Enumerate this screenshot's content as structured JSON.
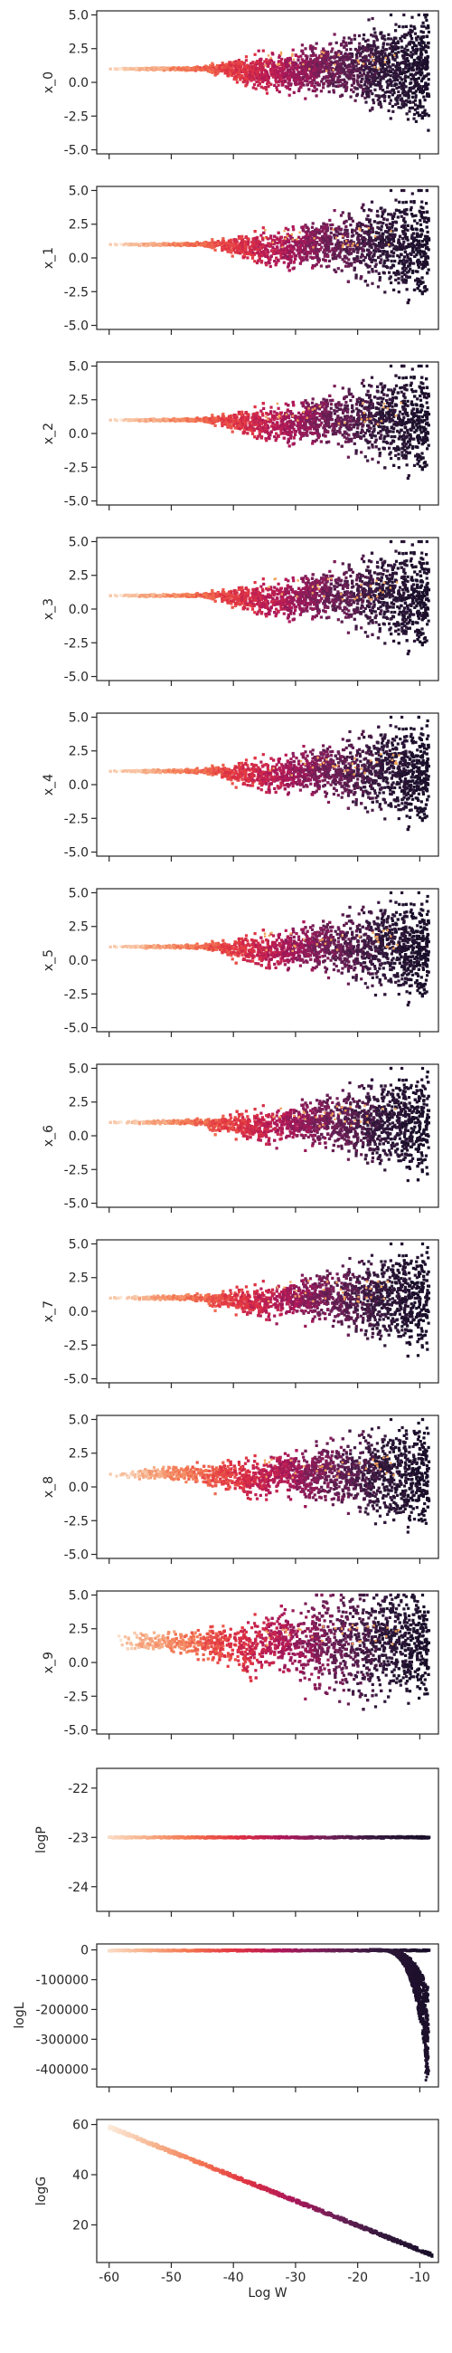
{
  "figure": {
    "shared_xlabel": "Log W",
    "colormap": [
      "#fcebdb",
      "#f6b48e",
      "#f37651",
      "#e13342",
      "#ad1759",
      "#701f57",
      "#35193e",
      "#1a0f2a"
    ],
    "outlier_color": "#f2a25a"
  },
  "chart_data": [
    {
      "type": "scatter",
      "ylabel": "x_0",
      "xlim": [
        -62,
        -7
      ],
      "ylim": [
        -5.3,
        5.3
      ],
      "yticks": [
        5.0,
        2.5,
        0.0,
        -2.5,
        -5.0
      ],
      "yticklabels": [
        "5.0",
        "2.5",
        "0.0",
        "-2.5",
        "-5.0"
      ],
      "xticks": [
        -60,
        -50,
        -40,
        -30,
        -20,
        -10
      ],
      "xticklabels": [
        "",
        "",
        "",
        "",
        "",
        ""
      ],
      "trend": "fan",
      "y_center": 1.0,
      "spread_at_x": [
        [
          -60,
          0.05
        ],
        [
          -45,
          0.15
        ],
        [
          -40,
          0.9
        ],
        [
          -30,
          1.6
        ],
        [
          -20,
          3.0
        ],
        [
          -10,
          5.0
        ]
      ],
      "dip_at": -41
    },
    {
      "type": "scatter",
      "ylabel": "x_1",
      "xlim": [
        -62,
        -7
      ],
      "ylim": [
        -5.3,
        5.3
      ],
      "yticks": [
        5.0,
        2.5,
        0.0,
        -2.5,
        -5.0
      ],
      "yticklabels": [
        "5.0",
        "2.5",
        "0.0",
        "-2.5",
        "-5.0"
      ],
      "xticks": [
        -60,
        -50,
        -40,
        -30,
        -20,
        -10
      ],
      "xticklabels": [
        "",
        "",
        "",
        "",
        "",
        ""
      ],
      "trend": "fan",
      "y_center": 1.0,
      "spread_at_x": [
        [
          -60,
          0.05
        ],
        [
          -45,
          0.15
        ],
        [
          -40,
          0.8
        ],
        [
          -30,
          1.5
        ],
        [
          -20,
          3.0
        ],
        [
          -10,
          5.0
        ]
      ],
      "dip_at": -42
    },
    {
      "type": "scatter",
      "ylabel": "x_2",
      "xlim": [
        -62,
        -7
      ],
      "ylim": [
        -5.3,
        5.3
      ],
      "yticks": [
        5.0,
        2.5,
        0.0,
        -2.5,
        -5.0
      ],
      "yticklabels": [
        "5.0",
        "2.5",
        "0.0",
        "-2.5",
        "-5.0"
      ],
      "xticks": [
        -60,
        -50,
        -40,
        -30,
        -20,
        -10
      ],
      "xticklabels": [
        "",
        "",
        "",
        "",
        "",
        ""
      ],
      "trend": "fan",
      "y_center": 1.0,
      "spread_at_x": [
        [
          -60,
          0.05
        ],
        [
          -45,
          0.15
        ],
        [
          -40,
          0.8
        ],
        [
          -30,
          1.5
        ],
        [
          -20,
          3.0
        ],
        [
          -10,
          5.0
        ]
      ],
      "dip_at": -42
    },
    {
      "type": "scatter",
      "ylabel": "x_3",
      "xlim": [
        -62,
        -7
      ],
      "ylim": [
        -5.3,
        5.3
      ],
      "yticks": [
        5.0,
        2.5,
        0.0,
        -2.5,
        -5.0
      ],
      "yticklabels": [
        "5.0",
        "2.5",
        "0.0",
        "-2.5",
        "-5.0"
      ],
      "xticks": [
        -60,
        -50,
        -40,
        -30,
        -20,
        -10
      ],
      "xticklabels": [
        "",
        "",
        "",
        "",
        "",
        ""
      ],
      "trend": "fan",
      "y_center": 1.0,
      "spread_at_x": [
        [
          -60,
          0.05
        ],
        [
          -45,
          0.15
        ],
        [
          -40,
          0.8
        ],
        [
          -30,
          1.5
        ],
        [
          -20,
          3.0
        ],
        [
          -10,
          5.0
        ]
      ],
      "dip_at": -42
    },
    {
      "type": "scatter",
      "ylabel": "x_4",
      "xlim": [
        -62,
        -7
      ],
      "ylim": [
        -5.3,
        5.3
      ],
      "yticks": [
        5.0,
        2.5,
        0.0,
        -2.5,
        -5.0
      ],
      "yticklabels": [
        "5.0",
        "2.5",
        "0.0",
        "-2.5",
        "-5.0"
      ],
      "xticks": [
        -60,
        -50,
        -40,
        -30,
        -20,
        -10
      ],
      "xticklabels": [
        "",
        "",
        "",
        "",
        "",
        ""
      ],
      "trend": "fan",
      "y_center": 1.0,
      "spread_at_x": [
        [
          -60,
          0.05
        ],
        [
          -45,
          0.2
        ],
        [
          -40,
          0.8
        ],
        [
          -30,
          1.5
        ],
        [
          -20,
          3.0
        ],
        [
          -10,
          5.0
        ]
      ],
      "dip_at": -43
    },
    {
      "type": "scatter",
      "ylabel": "x_5",
      "xlim": [
        -62,
        -7
      ],
      "ylim": [
        -5.3,
        5.3
      ],
      "yticks": [
        5.0,
        2.5,
        0.0,
        -2.5,
        -5.0
      ],
      "yticklabels": [
        "5.0",
        "2.5",
        "0.0",
        "-2.5",
        "-5.0"
      ],
      "xticks": [
        -60,
        -50,
        -40,
        -30,
        -20,
        -10
      ],
      "xticklabels": [
        "",
        "",
        "",
        "",
        "",
        ""
      ],
      "trend": "fan",
      "y_center": 1.0,
      "spread_at_x": [
        [
          -60,
          0.05
        ],
        [
          -45,
          0.2
        ],
        [
          -40,
          0.8
        ],
        [
          -30,
          1.5
        ],
        [
          -20,
          3.0
        ],
        [
          -10,
          5.0
        ]
      ],
      "dip_at": -43
    },
    {
      "type": "scatter",
      "ylabel": "x_6",
      "xlim": [
        -62,
        -7
      ],
      "ylim": [
        -5.3,
        5.3
      ],
      "yticks": [
        5.0,
        2.5,
        0.0,
        -2.5,
        -5.0
      ],
      "yticklabels": [
        "5.0",
        "2.5",
        "0.0",
        "-2.5",
        "-5.0"
      ],
      "xticks": [
        -60,
        -50,
        -40,
        -30,
        -20,
        -10
      ],
      "xticklabels": [
        "",
        "",
        "",
        "",
        "",
        ""
      ],
      "trend": "fan",
      "y_center": 1.0,
      "spread_at_x": [
        [
          -60,
          0.05
        ],
        [
          -45,
          0.25
        ],
        [
          -40,
          0.8
        ],
        [
          -30,
          1.5
        ],
        [
          -20,
          3.0
        ],
        [
          -10,
          5.0
        ]
      ],
      "dip_at": -44
    },
    {
      "type": "scatter",
      "ylabel": "x_7",
      "xlim": [
        -62,
        -7
      ],
      "ylim": [
        -5.3,
        5.3
      ],
      "yticks": [
        5.0,
        2.5,
        0.0,
        -2.5,
        -5.0
      ],
      "yticklabels": [
        "5.0",
        "2.5",
        "0.0",
        "-2.5",
        "-5.0"
      ],
      "xticks": [
        -60,
        -50,
        -40,
        -30,
        -20,
        -10
      ],
      "xticklabels": [
        "",
        "",
        "",
        "",
        "",
        ""
      ],
      "trend": "fan",
      "y_center": 1.0,
      "spread_at_x": [
        [
          -60,
          0.05
        ],
        [
          -45,
          0.3
        ],
        [
          -40,
          0.8
        ],
        [
          -30,
          1.5
        ],
        [
          -20,
          3.0
        ],
        [
          -10,
          5.0
        ]
      ],
      "dip_at": -44
    },
    {
      "type": "scatter",
      "ylabel": "x_8",
      "xlim": [
        -62,
        -7
      ],
      "ylim": [
        -5.3,
        5.3
      ],
      "yticks": [
        5.0,
        2.5,
        0.0,
        -2.5,
        -5.0
      ],
      "yticklabels": [
        "5.0",
        "2.5",
        "0.0",
        "-2.5",
        "-5.0"
      ],
      "xticks": [
        -60,
        -50,
        -40,
        -30,
        -20,
        -10
      ],
      "xticklabels": [
        "",
        "",
        "",
        "",
        "",
        ""
      ],
      "trend": "fan",
      "y_center": 1.0,
      "spread_at_x": [
        [
          -60,
          0.3
        ],
        [
          -45,
          0.8
        ],
        [
          -40,
          1.2
        ],
        [
          -30,
          1.8
        ],
        [
          -20,
          3.2
        ],
        [
          -10,
          5.0
        ]
      ],
      "dip_at": -46
    },
    {
      "type": "scatter",
      "ylabel": "x_9",
      "xlim": [
        -62,
        -7
      ],
      "ylim": [
        -5.3,
        5.3
      ],
      "yticks": [
        5.0,
        2.5,
        0.0,
        -2.5,
        -5.0
      ],
      "yticklabels": [
        "5.0",
        "2.5",
        "0.0",
        "-2.5",
        "-5.0"
      ],
      "xticks": [
        -60,
        -50,
        -40,
        -30,
        -20,
        -10
      ],
      "xticklabels": [
        "",
        "",
        "",
        "",
        "",
        ""
      ],
      "trend": "fan",
      "y_center": 1.5,
      "spread_at_x": [
        [
          -60,
          0.6
        ],
        [
          -45,
          1.2
        ],
        [
          -40,
          1.8
        ],
        [
          -30,
          3.0
        ],
        [
          -25,
          4.5
        ],
        [
          -10,
          5.0
        ]
      ],
      "dip_at": -48
    },
    {
      "type": "scatter",
      "ylabel": "logP",
      "xlim": [
        -62,
        -7
      ],
      "ylim": [
        -24.5,
        -21.6
      ],
      "yticks": [
        -22,
        -23,
        -24
      ],
      "yticklabels": [
        "-22",
        "-23",
        "-24"
      ],
      "xticks": [
        -60,
        -50,
        -40,
        -30,
        -20,
        -10
      ],
      "xticklabels": [
        "",
        "",
        "",
        "",
        "",
        ""
      ],
      "trend": "constant",
      "y_value": -23
    },
    {
      "type": "scatter",
      "ylabel": "logL",
      "xlim": [
        -62,
        -7
      ],
      "ylim": [
        -460000,
        20000
      ],
      "yticks": [
        0,
        -100000,
        -200000,
        -300000,
        -400000
      ],
      "yticklabels": [
        "0",
        "-100000",
        "-200000",
        "-300000",
        "-400000"
      ],
      "xticks": [
        -60,
        -50,
        -40,
        -30,
        -20,
        -10
      ],
      "xticklabels": [
        "",
        "",
        "",
        "",
        "",
        ""
      ],
      "trend": "drop",
      "y_value": 0,
      "drop_start": -18,
      "drop_min": -440000
    },
    {
      "type": "scatter",
      "ylabel": "logG",
      "xlabel": "Log W",
      "xlim": [
        -62,
        -7
      ],
      "ylim": [
        5,
        62
      ],
      "yticks": [
        60,
        40,
        20
      ],
      "yticklabels": [
        "60",
        "40",
        "20"
      ],
      "xticks": [
        -60,
        -50,
        -40,
        -30,
        -20,
        -10
      ],
      "xticklabels": [
        "-60",
        "-50",
        "-40",
        "-30",
        "-20",
        "-10"
      ],
      "trend": "linear",
      "line_points": [
        [
          -60,
          59
        ],
        [
          -8,
          8
        ]
      ]
    }
  ]
}
